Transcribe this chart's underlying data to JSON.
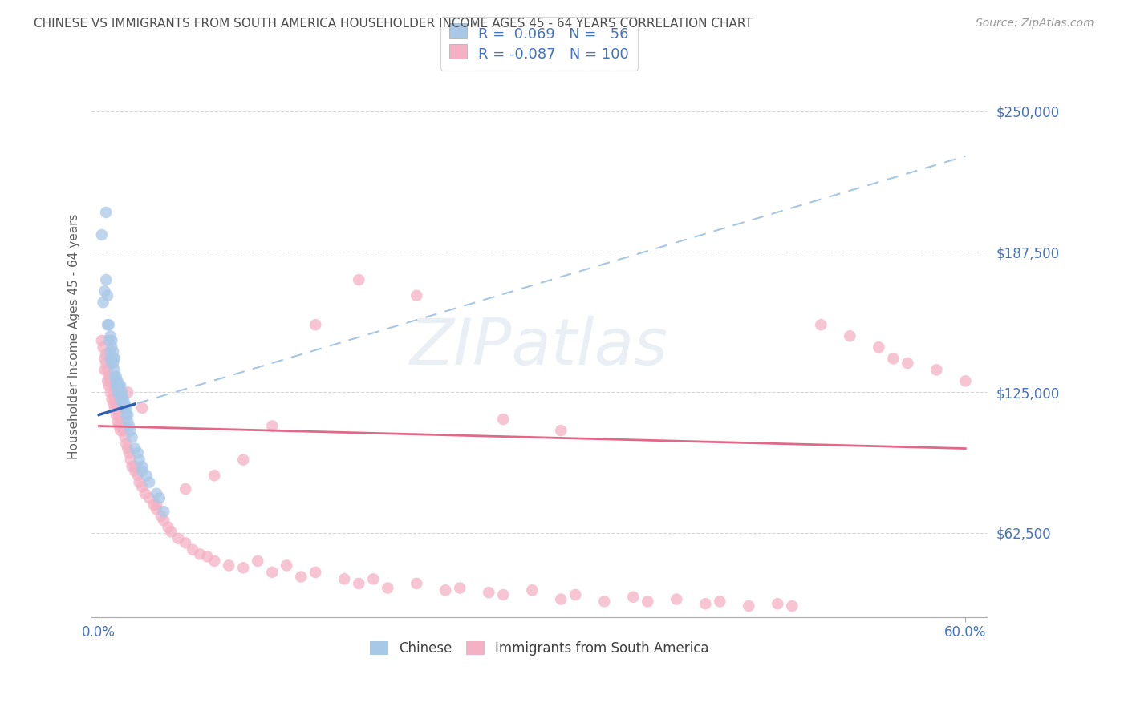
{
  "title": "CHINESE VS IMMIGRANTS FROM SOUTH AMERICA HOUSEHOLDER INCOME AGES 45 - 64 YEARS CORRELATION CHART",
  "source": "Source: ZipAtlas.com",
  "ylabel": "Householder Income Ages 45 - 64 years",
  "xlim": [
    -0.005,
    0.615
  ],
  "ylim": [
    25000,
    275000
  ],
  "yticks": [
    62500,
    125000,
    187500,
    250000
  ],
  "ytick_labels": [
    "$62,500",
    "$125,000",
    "$187,500",
    "$250,000"
  ],
  "xticks": [
    0.0,
    0.6
  ],
  "xtick_labels": [
    "0.0%",
    "60.0%"
  ],
  "series1_name": "Chinese",
  "series1_R": 0.069,
  "series1_N": 56,
  "series1_color": "#a8c8e8",
  "series1_line_color": "#3060b0",
  "series2_name": "Immigrants from South America",
  "series2_R": -0.087,
  "series2_N": 100,
  "series2_color": "#f4b0c4",
  "series2_line_color": "#e06888",
  "background_color": "#ffffff",
  "watermark": "ZIPatlas",
  "title_color": "#505050",
  "axis_label_color": "#606060",
  "tick_label_color": "#4472c4",
  "grid_color": "#d8d8d8",
  "chinese_x": [
    0.002,
    0.005,
    0.004,
    0.005,
    0.003,
    0.006,
    0.006,
    0.007,
    0.007,
    0.008,
    0.008,
    0.009,
    0.009,
    0.008,
    0.009,
    0.01,
    0.01,
    0.01,
    0.011,
    0.011,
    0.011,
    0.012,
    0.012,
    0.012,
    0.013,
    0.013,
    0.013,
    0.014,
    0.014,
    0.015,
    0.015,
    0.015,
    0.016,
    0.016,
    0.016,
    0.017,
    0.017,
    0.018,
    0.018,
    0.019,
    0.019,
    0.02,
    0.02,
    0.021,
    0.022,
    0.023,
    0.025,
    0.027,
    0.028,
    0.03,
    0.03,
    0.033,
    0.035,
    0.04,
    0.042,
    0.045
  ],
  "chinese_y": [
    195000,
    205000,
    170000,
    175000,
    165000,
    168000,
    155000,
    148000,
    155000,
    143000,
    150000,
    148000,
    145000,
    140000,
    138000,
    143000,
    140000,
    138000,
    132000,
    135000,
    140000,
    130000,
    128000,
    132000,
    128000,
    125000,
    130000,
    128000,
    125000,
    125000,
    122000,
    128000,
    122000,
    120000,
    125000,
    120000,
    122000,
    118000,
    120000,
    115000,
    118000,
    112000,
    115000,
    110000,
    108000,
    105000,
    100000,
    98000,
    95000,
    90000,
    92000,
    88000,
    85000,
    80000,
    78000,
    72000
  ],
  "sa_x": [
    0.002,
    0.003,
    0.004,
    0.004,
    0.005,
    0.005,
    0.006,
    0.006,
    0.007,
    0.007,
    0.008,
    0.008,
    0.009,
    0.009,
    0.01,
    0.01,
    0.011,
    0.011,
    0.012,
    0.012,
    0.013,
    0.013,
    0.014,
    0.014,
    0.015,
    0.015,
    0.016,
    0.017,
    0.018,
    0.019,
    0.02,
    0.021,
    0.022,
    0.023,
    0.025,
    0.027,
    0.028,
    0.03,
    0.032,
    0.035,
    0.038,
    0.04,
    0.043,
    0.045,
    0.048,
    0.05,
    0.055,
    0.06,
    0.065,
    0.07,
    0.075,
    0.08,
    0.09,
    0.1,
    0.11,
    0.12,
    0.13,
    0.14,
    0.15,
    0.17,
    0.18,
    0.19,
    0.2,
    0.22,
    0.24,
    0.25,
    0.27,
    0.28,
    0.3,
    0.32,
    0.33,
    0.35,
    0.37,
    0.38,
    0.4,
    0.42,
    0.43,
    0.45,
    0.47,
    0.48,
    0.5,
    0.52,
    0.54,
    0.55,
    0.56,
    0.58,
    0.6,
    0.32,
    0.28,
    0.22,
    0.18,
    0.15,
    0.12,
    0.1,
    0.08,
    0.06,
    0.04,
    0.03,
    0.025,
    0.02
  ],
  "sa_y": [
    148000,
    145000,
    140000,
    135000,
    142000,
    138000,
    135000,
    130000,
    132000,
    128000,
    130000,
    125000,
    128000,
    122000,
    125000,
    120000,
    122000,
    118000,
    120000,
    115000,
    118000,
    112000,
    115000,
    110000,
    112000,
    108000,
    110000,
    108000,
    105000,
    102000,
    100000,
    98000,
    95000,
    92000,
    90000,
    88000,
    85000,
    83000,
    80000,
    78000,
    75000,
    73000,
    70000,
    68000,
    65000,
    63000,
    60000,
    58000,
    55000,
    53000,
    52000,
    50000,
    48000,
    47000,
    50000,
    45000,
    48000,
    43000,
    45000,
    42000,
    40000,
    42000,
    38000,
    40000,
    37000,
    38000,
    36000,
    35000,
    37000,
    33000,
    35000,
    32000,
    34000,
    32000,
    33000,
    31000,
    32000,
    30000,
    31000,
    30000,
    155000,
    150000,
    145000,
    140000,
    138000,
    135000,
    130000,
    108000,
    113000,
    168000,
    175000,
    155000,
    110000,
    95000,
    88000,
    82000,
    75000,
    118000,
    92000,
    125000
  ]
}
